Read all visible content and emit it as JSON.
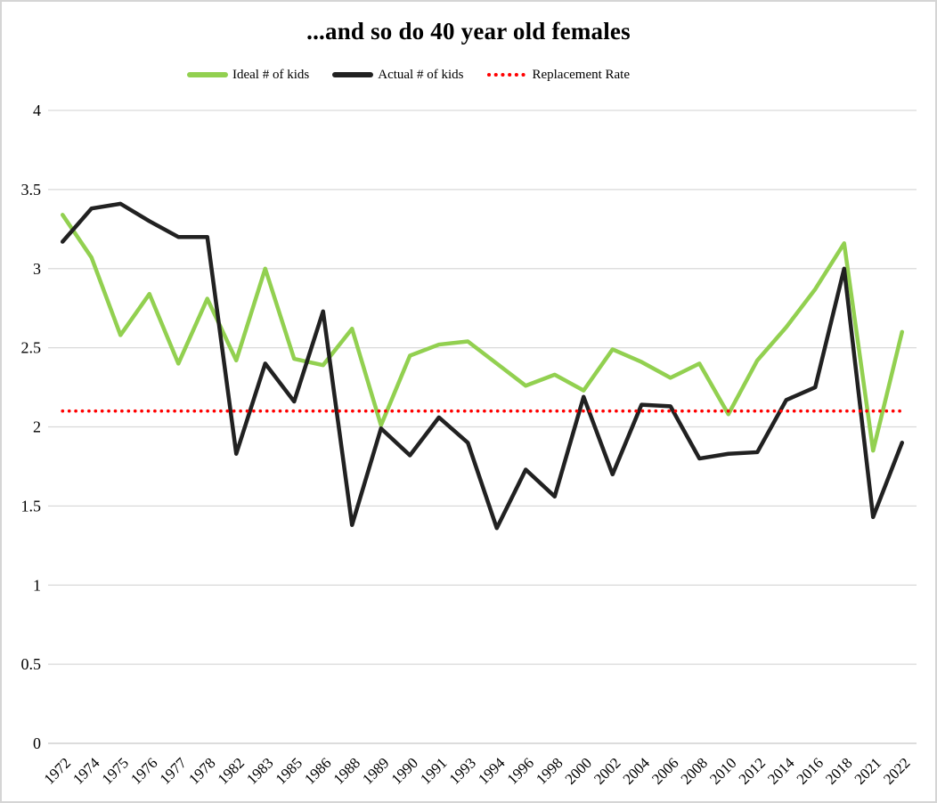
{
  "chart_data": {
    "type": "line",
    "title": "...and so do 40 year old females",
    "categories": [
      "1972",
      "1974",
      "1975",
      "1976",
      "1977",
      "1978",
      "1982",
      "1983",
      "1985",
      "1986",
      "1988",
      "1989",
      "1990",
      "1991",
      "1993",
      "1994",
      "1996",
      "1998",
      "2000",
      "2002",
      "2004",
      "2006",
      "2008",
      "2010",
      "2012",
      "2014",
      "2016",
      "2018",
      "2021",
      "2022"
    ],
    "series": [
      {
        "name": "Ideal # of kids",
        "color": "#92D050",
        "style": "solid",
        "values": [
          3.34,
          3.07,
          2.58,
          2.84,
          2.4,
          2.81,
          2.42,
          3.0,
          2.43,
          2.39,
          2.62,
          2.01,
          2.45,
          2.52,
          2.54,
          2.4,
          2.26,
          2.33,
          2.23,
          2.49,
          2.41,
          2.31,
          2.4,
          2.08,
          2.42,
          2.63,
          2.87,
          3.16,
          1.85,
          2.6
        ]
      },
      {
        "name": "Actual # of kids",
        "color": "#212121",
        "style": "solid",
        "values": [
          3.17,
          3.38,
          3.41,
          3.3,
          3.2,
          3.2,
          1.83,
          2.4,
          2.16,
          2.73,
          1.38,
          1.99,
          1.82,
          2.06,
          1.9,
          1.36,
          1.73,
          1.56,
          2.19,
          1.7,
          2.14,
          2.13,
          1.8,
          1.83,
          1.84,
          2.17,
          2.25,
          3.0,
          1.43,
          1.9
        ]
      },
      {
        "name": "Replacement Rate",
        "color": "#FF0000",
        "style": "dotted",
        "constant_value": 2.1
      }
    ],
    "ylim": [
      0,
      4
    ],
    "y_ticks": [
      "4",
      "3.5",
      "3",
      "2.5",
      "2",
      "1.5",
      "1",
      "0.5",
      "0"
    ],
    "xlabel": "",
    "ylabel": "",
    "grid": "horizontal",
    "legend_position": "top",
    "x_label_rotation_deg": -45
  }
}
